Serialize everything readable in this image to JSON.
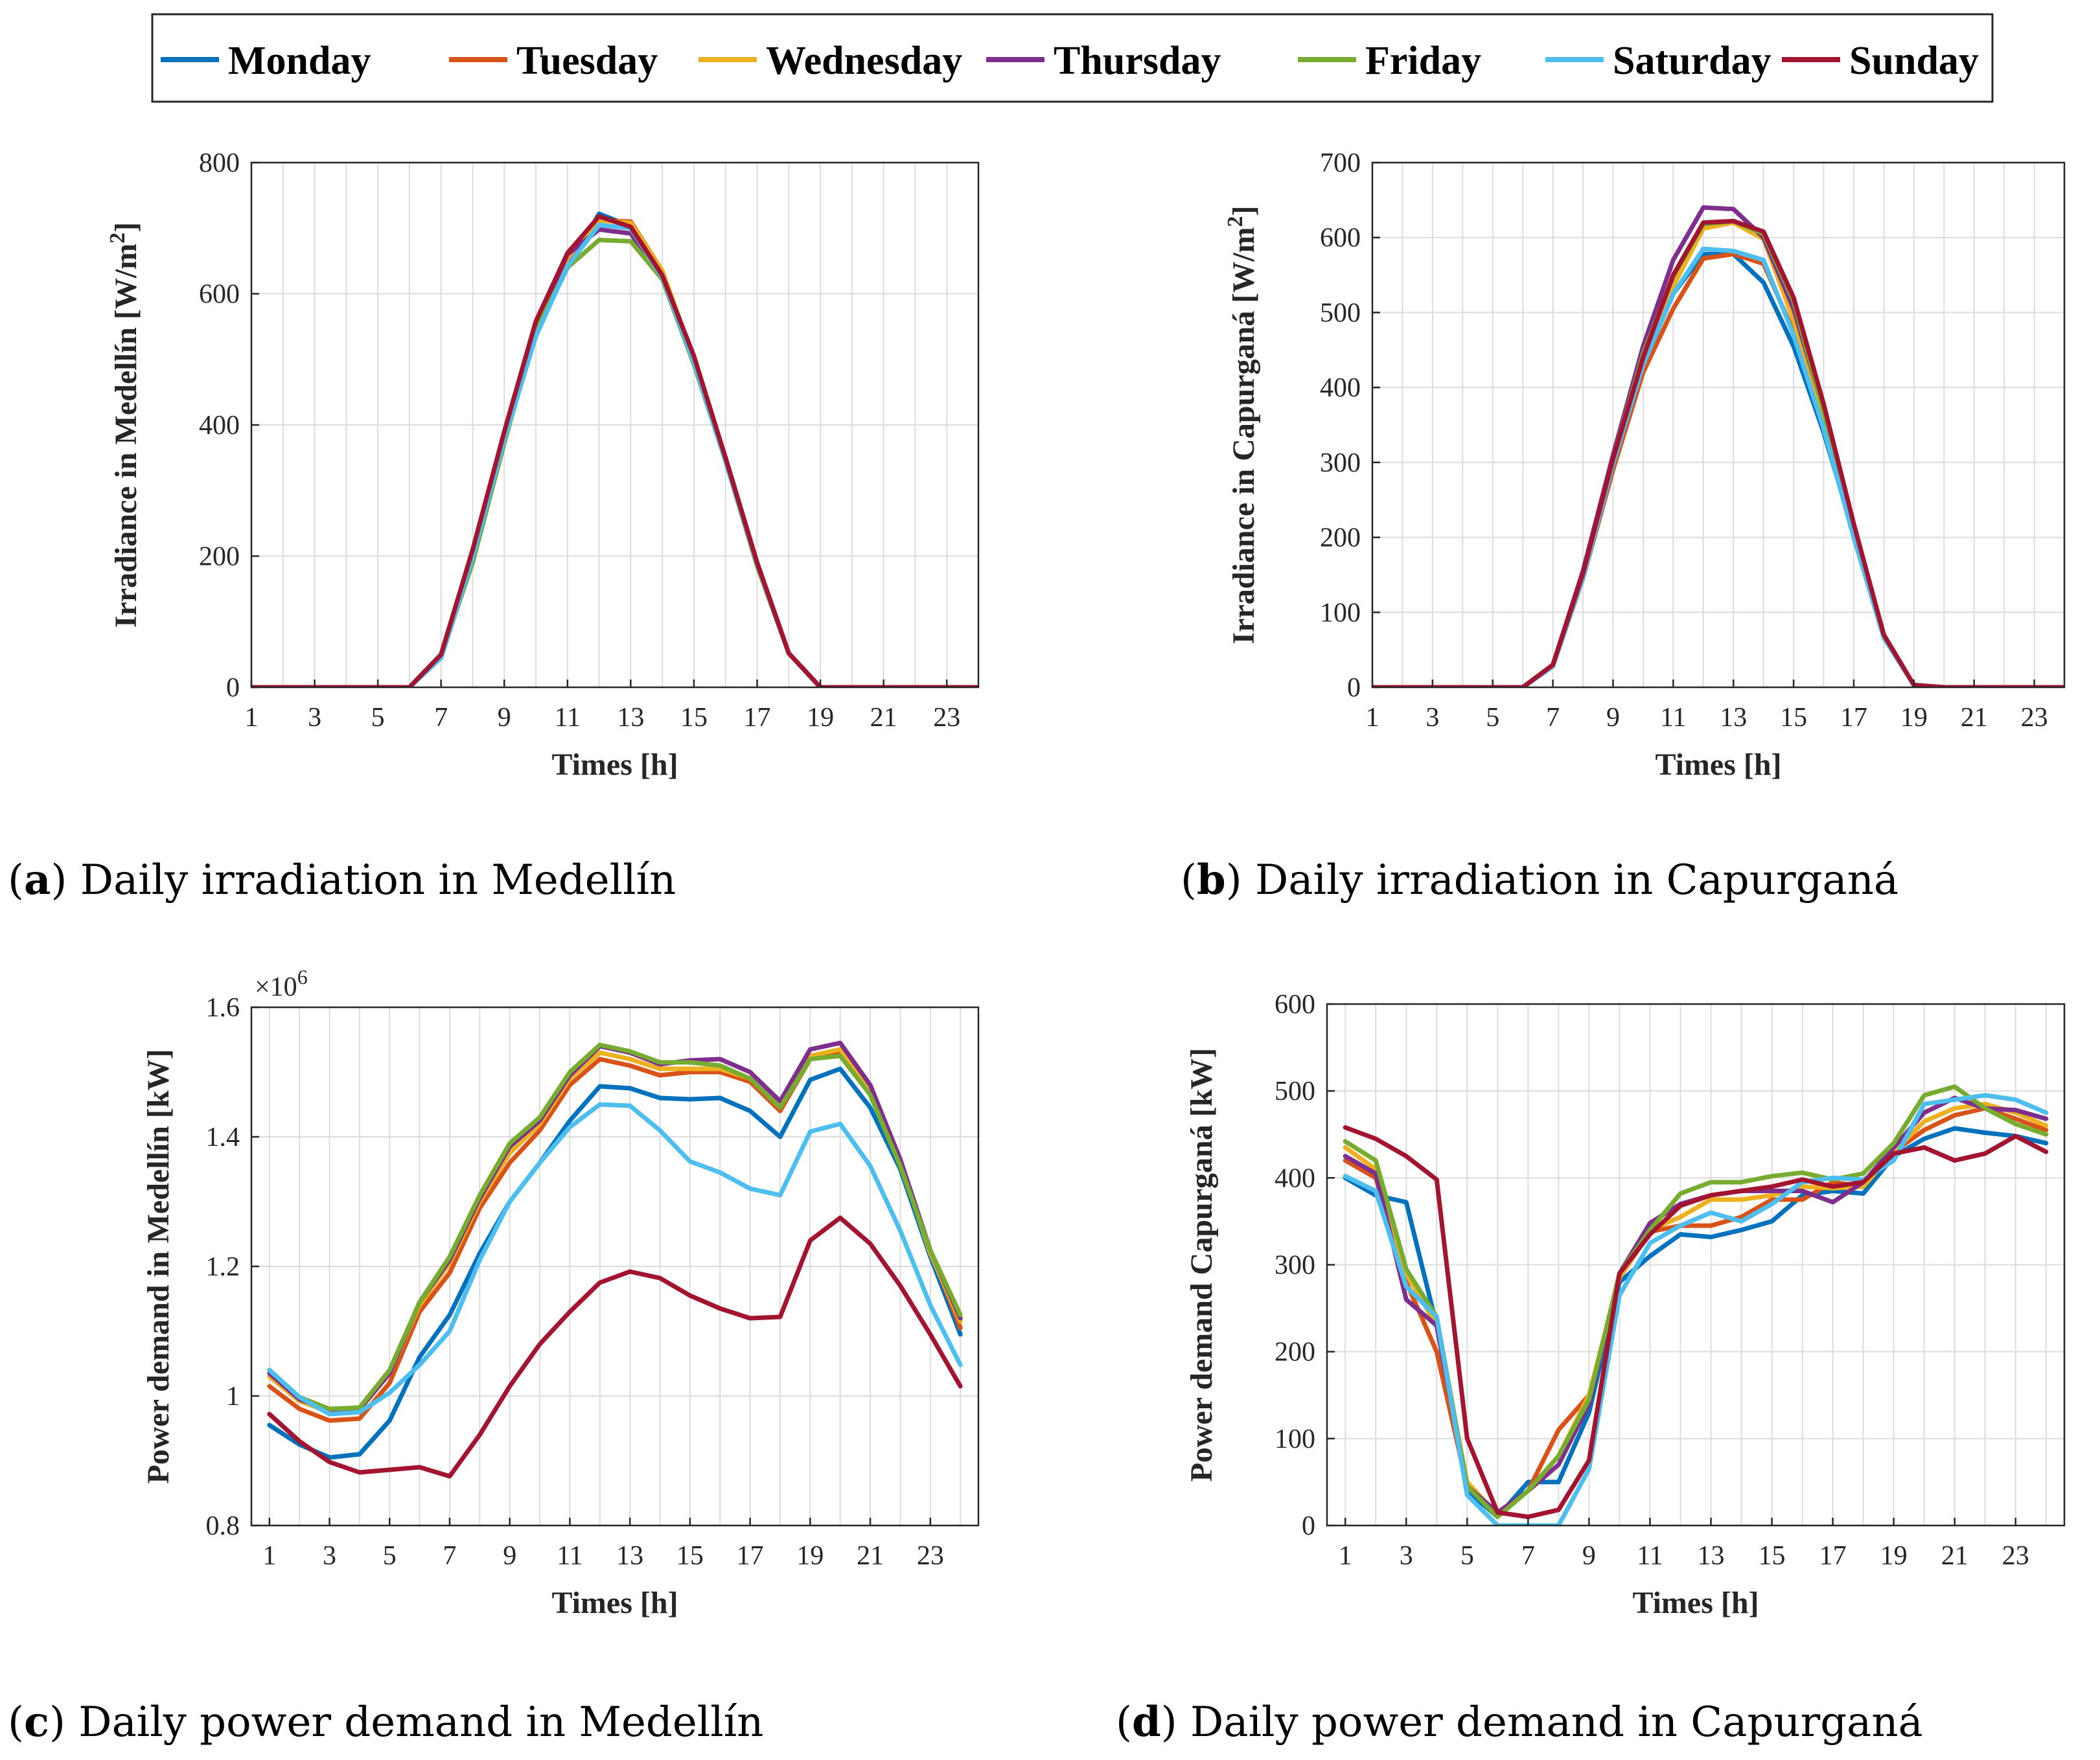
{
  "legend": [
    {
      "name": "Monday",
      "color": "#0072BD"
    },
    {
      "name": "Tuesday",
      "color": "#D95319"
    },
    {
      "name": "Wednesday",
      "color": "#EDB120"
    },
    {
      "name": "Thursday",
      "color": "#7E2F8E"
    },
    {
      "name": "Friday",
      "color": "#77AC30"
    },
    {
      "name": "Saturday",
      "color": "#4DBEEE"
    },
    {
      "name": "Sunday",
      "color": "#A2142F"
    }
  ],
  "captions": [
    {
      "letter": "a",
      "text": " Daily irradiation in Medellín"
    },
    {
      "letter": "b",
      "text": " Daily irradiation in Capurganá"
    },
    {
      "letter": "c",
      "text": " Daily power demand in Medellín"
    },
    {
      "letter": "d",
      "text": " Daily power demand in Capurganá"
    }
  ],
  "chart_data": [
    {
      "type": "line",
      "title": "Daily irradiation in Medellín",
      "xlabel": "Times [h]",
      "ylabel": "Irradiance in Medellín [W/m²]",
      "xlim": [
        1,
        24
      ],
      "ylim": [
        0,
        800
      ],
      "xticks": [
        "1",
        "3",
        "5",
        "7",
        "9",
        "11",
        "13",
        "15",
        "17",
        "19",
        "21",
        "23"
      ],
      "yticks": [
        "0",
        "200",
        "400",
        "600",
        "800"
      ],
      "grid": true,
      "x": [
        1,
        2,
        3,
        4,
        5,
        6,
        7,
        8,
        9,
        10,
        11,
        12,
        13,
        14,
        15,
        16,
        17,
        18,
        19,
        20,
        21,
        22,
        23,
        24
      ],
      "series": [
        {
          "name": "Monday",
          "values": [
            0,
            0,
            0,
            0,
            0,
            0,
            45,
            195,
            375,
            540,
            640,
            722,
            703,
            625,
            500,
            350,
            190,
            52,
            0,
            0,
            0,
            0,
            0,
            0
          ]
        },
        {
          "name": "Tuesday",
          "values": [
            0,
            0,
            0,
            0,
            0,
            0,
            50,
            205,
            385,
            548,
            650,
            712,
            710,
            635,
            498,
            345,
            185,
            52,
            0,
            0,
            0,
            0,
            0,
            0
          ]
        },
        {
          "name": "Wednesday",
          "values": [
            0,
            0,
            0,
            0,
            0,
            0,
            50,
            205,
            385,
            550,
            655,
            712,
            708,
            635,
            500,
            348,
            188,
            52,
            0,
            0,
            0,
            0,
            0,
            0
          ]
        },
        {
          "name": "Thursday",
          "values": [
            0,
            0,
            0,
            0,
            0,
            0,
            50,
            208,
            385,
            552,
            660,
            698,
            692,
            625,
            500,
            350,
            190,
            52,
            0,
            0,
            0,
            0,
            0,
            0
          ]
        },
        {
          "name": "Friday",
          "values": [
            0,
            0,
            0,
            0,
            0,
            0,
            48,
            190,
            372,
            545,
            640,
            682,
            680,
            622,
            492,
            345,
            185,
            52,
            0,
            0,
            0,
            0,
            0,
            0
          ]
        },
        {
          "name": "Saturday",
          "values": [
            0,
            0,
            0,
            0,
            0,
            0,
            45,
            198,
            378,
            535,
            642,
            705,
            700,
            625,
            495,
            345,
            188,
            52,
            0,
            0,
            0,
            0,
            0,
            0
          ]
        },
        {
          "name": "Sunday",
          "values": [
            0,
            0,
            0,
            0,
            0,
            0,
            50,
            210,
            390,
            558,
            662,
            718,
            702,
            628,
            505,
            350,
            190,
            52,
            0,
            0,
            0,
            0,
            0,
            0
          ]
        }
      ]
    },
    {
      "type": "line",
      "title": "Daily irradiation in Capurganá",
      "xlabel": "Times [h]",
      "ylabel": "Irradiance in Capurganá [W/m²]",
      "xlim": [
        1,
        24
      ],
      "ylim": [
        0,
        700
      ],
      "xticks": [
        "1",
        "3",
        "5",
        "7",
        "9",
        "11",
        "13",
        "15",
        "17",
        "19",
        "21",
        "23"
      ],
      "yticks": [
        "0",
        "100",
        "200",
        "300",
        "400",
        "500",
        "600",
        "700"
      ],
      "grid": true,
      "x": [
        1,
        2,
        3,
        4,
        5,
        6,
        7,
        8,
        9,
        10,
        11,
        12,
        13,
        14,
        15,
        16,
        17,
        18,
        19,
        20,
        21,
        22,
        23,
        24
      ],
      "series": [
        {
          "name": "Monday",
          "values": [
            0,
            0,
            0,
            0,
            0,
            0,
            28,
            150,
            300,
            430,
            525,
            578,
            578,
            540,
            455,
            340,
            205,
            70,
            3,
            0,
            0,
            0,
            0,
            0
          ]
        },
        {
          "name": "Tuesday",
          "values": [
            0,
            0,
            0,
            0,
            0,
            0,
            28,
            145,
            290,
            420,
            505,
            572,
            578,
            565,
            475,
            350,
            200,
            66,
            3,
            0,
            0,
            0,
            0,
            0
          ]
        },
        {
          "name": "Wednesday",
          "values": [
            0,
            0,
            0,
            0,
            0,
            0,
            28,
            148,
            300,
            440,
            535,
            612,
            620,
            598,
            490,
            355,
            205,
            66,
            3,
            0,
            0,
            0,
            0,
            0
          ]
        },
        {
          "name": "Thursday",
          "values": [
            0,
            0,
            0,
            0,
            0,
            0,
            30,
            155,
            310,
            455,
            570,
            640,
            638,
            600,
            505,
            370,
            210,
            68,
            3,
            0,
            0,
            0,
            0,
            0
          ]
        },
        {
          "name": "Friday",
          "values": [
            0,
            0,
            0,
            0,
            0,
            0,
            29,
            150,
            305,
            445,
            548,
            618,
            622,
            605,
            515,
            368,
            210,
            68,
            3,
            0,
            0,
            0,
            0,
            0
          ]
        },
        {
          "name": "Saturday",
          "values": [
            0,
            0,
            0,
            0,
            0,
            0,
            28,
            146,
            298,
            430,
            525,
            585,
            582,
            570,
            470,
            345,
            200,
            66,
            3,
            0,
            0,
            0,
            0,
            0
          ]
        },
        {
          "name": "Sunday",
          "values": [
            0,
            0,
            0,
            0,
            0,
            0,
            30,
            152,
            305,
            440,
            550,
            620,
            622,
            608,
            520,
            378,
            218,
            70,
            3,
            0,
            0,
            0,
            0,
            0
          ]
        }
      ]
    },
    {
      "type": "line",
      "title": "Daily power demand in Medellín",
      "xlabel": "Times [h]",
      "ylabel": "Power demand in Medellín [kW]",
      "y_multiplier": "×10",
      "y_multiplier_exp": "6",
      "xlim": [
        0.4,
        24.6
      ],
      "ylim": [
        0.8,
        1.6
      ],
      "xticks": [
        "1",
        "3",
        "5",
        "7",
        "9",
        "11",
        "13",
        "15",
        "17",
        "19",
        "21",
        "23"
      ],
      "yticks": [
        "0.8",
        "1",
        "1.2",
        "1.4",
        "1.6"
      ],
      "grid": true,
      "x": [
        1,
        2,
        3,
        4,
        5,
        6,
        7,
        8,
        9,
        10,
        11,
        12,
        13,
        14,
        15,
        16,
        17,
        18,
        19,
        20,
        21,
        22,
        23,
        24
      ],
      "series": [
        {
          "name": "Monday",
          "values": [
            0.955,
            0.925,
            0.905,
            0.91,
            0.962,
            1.06,
            1.125,
            1.22,
            1.3,
            1.36,
            1.425,
            1.478,
            1.475,
            1.46,
            1.458,
            1.46,
            1.44,
            1.4,
            1.488,
            1.505,
            1.445,
            1.35,
            1.215,
            1.095
          ]
        },
        {
          "name": "Tuesday",
          "values": [
            1.015,
            0.98,
            0.962,
            0.965,
            1.02,
            1.13,
            1.19,
            1.29,
            1.36,
            1.41,
            1.48,
            1.52,
            1.51,
            1.495,
            1.5,
            1.5,
            1.485,
            1.44,
            1.52,
            1.53,
            1.465,
            1.355,
            1.225,
            1.105
          ]
        },
        {
          "name": "Wednesday",
          "values": [
            1.03,
            0.992,
            0.975,
            0.978,
            1.035,
            1.14,
            1.205,
            1.3,
            1.375,
            1.42,
            1.49,
            1.53,
            1.52,
            1.505,
            1.505,
            1.505,
            1.49,
            1.445,
            1.525,
            1.535,
            1.47,
            1.36,
            1.22,
            1.115
          ]
        },
        {
          "name": "Thursday",
          "values": [
            1.035,
            0.995,
            0.978,
            0.98,
            1.035,
            1.145,
            1.21,
            1.305,
            1.385,
            1.425,
            1.495,
            1.54,
            1.53,
            1.512,
            1.518,
            1.52,
            1.5,
            1.455,
            1.535,
            1.545,
            1.48,
            1.365,
            1.225,
            1.12
          ]
        },
        {
          "name": "Friday",
          "values": [
            1.04,
            0.998,
            0.98,
            0.982,
            1.04,
            1.145,
            1.215,
            1.31,
            1.39,
            1.43,
            1.5,
            1.542,
            1.532,
            1.515,
            1.515,
            1.51,
            1.49,
            1.445,
            1.52,
            1.525,
            1.465,
            1.355,
            1.225,
            1.125
          ]
        },
        {
          "name": "Saturday",
          "values": [
            1.04,
            0.998,
            0.972,
            0.975,
            1.005,
            1.048,
            1.1,
            1.21,
            1.3,
            1.36,
            1.415,
            1.45,
            1.448,
            1.41,
            1.362,
            1.345,
            1.32,
            1.31,
            1.408,
            1.42,
            1.355,
            1.255,
            1.14,
            1.048
          ]
        },
        {
          "name": "Sunday",
          "values": [
            0.972,
            0.93,
            0.898,
            0.882,
            0.886,
            0.89,
            0.876,
            0.94,
            1.015,
            1.08,
            1.13,
            1.175,
            1.192,
            1.182,
            1.155,
            1.135,
            1.12,
            1.122,
            1.24,
            1.275,
            1.235,
            1.17,
            1.095,
            1.015
          ]
        }
      ]
    },
    {
      "type": "line",
      "title": "Daily power demand in Capurganá",
      "xlabel": "Times [h]",
      "ylabel": "Power demand Capurganá [kW]",
      "xlim": [
        0.4,
        24.6
      ],
      "ylim": [
        0,
        600
      ],
      "xticks": [
        "1",
        "3",
        "5",
        "7",
        "9",
        "11",
        "13",
        "15",
        "17",
        "19",
        "21",
        "23"
      ],
      "yticks": [
        "0",
        "100",
        "200",
        "300",
        "400",
        "500",
        "600"
      ],
      "grid": true,
      "x": [
        1,
        2,
        3,
        4,
        5,
        6,
        7,
        8,
        9,
        10,
        11,
        12,
        13,
        14,
        15,
        16,
        17,
        18,
        19,
        20,
        21,
        22,
        23,
        24
      ],
      "series": [
        {
          "name": "Monday",
          "values": [
            400,
            380,
            372,
            230,
            40,
            10,
            50,
            50,
            130,
            280,
            310,
            335,
            332,
            340,
            350,
            380,
            385,
            382,
            425,
            445,
            457,
            452,
            448,
            440
          ]
        },
        {
          "name": "Tuesday",
          "values": [
            420,
            400,
            280,
            200,
            45,
            12,
            40,
            110,
            150,
            285,
            338,
            345,
            345,
            355,
            375,
            375,
            395,
            390,
            430,
            455,
            472,
            480,
            468,
            455
          ]
        },
        {
          "name": "Wednesday",
          "values": [
            435,
            410,
            290,
            230,
            50,
            12,
            40,
            80,
            150,
            285,
            340,
            355,
            375,
            375,
            380,
            390,
            388,
            390,
            430,
            465,
            480,
            485,
            475,
            460
          ]
        },
        {
          "name": "Thursday",
          "values": [
            425,
            405,
            260,
            230,
            45,
            15,
            40,
            70,
            140,
            290,
            348,
            370,
            380,
            385,
            385,
            385,
            372,
            395,
            435,
            475,
            492,
            480,
            478,
            468
          ]
        },
        {
          "name": "Friday",
          "values": [
            442,
            420,
            295,
            240,
            45,
            10,
            40,
            80,
            145,
            290,
            340,
            382,
            395,
            395,
            402,
            406,
            398,
            405,
            440,
            495,
            505,
            480,
            462,
            450
          ]
        },
        {
          "name": "Saturday",
          "values": [
            402,
            385,
            275,
            240,
            35,
            0,
            0,
            0,
            65,
            265,
            325,
            345,
            360,
            350,
            370,
            395,
            400,
            398,
            420,
            485,
            490,
            495,
            490,
            475
          ]
        },
        {
          "name": "Sunday",
          "values": [
            458,
            445,
            425,
            398,
            100,
            15,
            10,
            18,
            75,
            290,
            335,
            368,
            380,
            385,
            390,
            398,
            390,
            395,
            428,
            435,
            420,
            428,
            448,
            430
          ]
        }
      ]
    }
  ]
}
